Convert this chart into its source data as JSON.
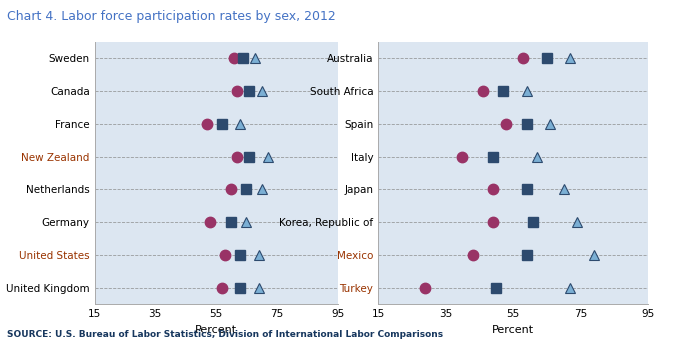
{
  "title": "Chart 4. Labor force participation rates by sex, 2012",
  "source": "SOURCE: U.S. Bureau of Labor Statistics, Division of International Labor Comparisons",
  "xlabel": "Percent",
  "xlim": [
    15,
    95
  ],
  "xticks": [
    15,
    35,
    55,
    75,
    95
  ],
  "left_countries": [
    "Sweden",
    "Canada",
    "France",
    "New Zealand",
    "Netherlands",
    "Germany",
    "United States",
    "United Kingdom"
  ],
  "right_countries": [
    "Australia",
    "South Africa",
    "Spain",
    "Italy",
    "Japan",
    "Korea, Republic of",
    "Mexico",
    "Turkey"
  ],
  "left_data": {
    "women": [
      61,
      62,
      52,
      62,
      60,
      53,
      58,
      57
    ],
    "total": [
      64,
      66,
      57,
      66,
      65,
      60,
      63,
      63
    ],
    "men": [
      68,
      70,
      63,
      72,
      70,
      65,
      69,
      69
    ]
  },
  "right_data": {
    "women": [
      58,
      46,
      53,
      40,
      49,
      49,
      43,
      29
    ],
    "total": [
      65,
      52,
      59,
      49,
      59,
      61,
      59,
      50
    ],
    "men": [
      72,
      59,
      66,
      62,
      70,
      74,
      79,
      72
    ]
  },
  "color_women": "#993366",
  "color_total": "#2d4a6e",
  "color_men": "#7bafd4",
  "bg_color": "#dce6f1",
  "fig_bg_color": "#ffffff",
  "title_color": "#4472c4",
  "source_color": "#17375e",
  "country_color_left": [
    "#000000",
    "#000000",
    "#000000",
    "#993300",
    "#000000",
    "#000000",
    "#993300",
    "#000000"
  ],
  "country_color_right": [
    "#000000",
    "#000000",
    "#000000",
    "#000000",
    "#000000",
    "#000000",
    "#993300",
    "#993300"
  ]
}
